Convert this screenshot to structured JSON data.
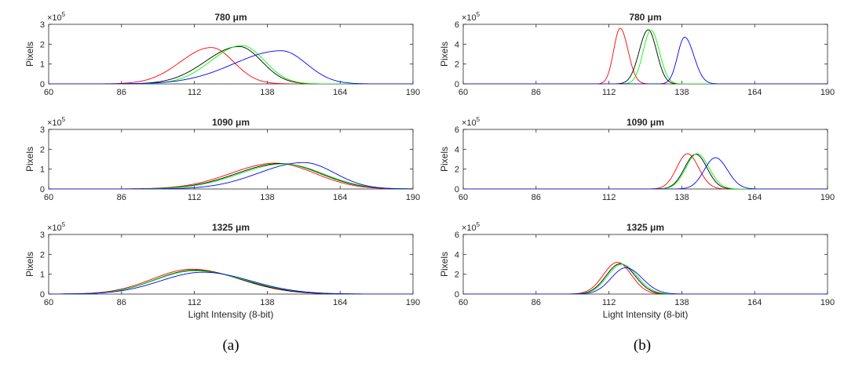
{
  "captions": [
    "(a)",
    "(b)"
  ],
  "chart_data": [
    {
      "type": "line",
      "title": "780 μm",
      "ylabel": "Pixels",
      "xlabel": "",
      "y_exponent": "×10^5",
      "xlim": [
        60,
        190
      ],
      "ylim": [
        0,
        300000
      ],
      "xticks": [
        60,
        86,
        112,
        138,
        164,
        190
      ],
      "yticks": [
        0,
        100000,
        200000,
        300000
      ],
      "ytick_labels": [
        "0",
        "1",
        "2",
        "3"
      ],
      "series": [
        {
          "color": "#ff0000",
          "peak_x": 118,
          "peak_y": 183000,
          "sd_left": 11,
          "sd_right": 8
        },
        {
          "color": "#000000",
          "peak_x": 128,
          "peak_y": 188000,
          "sd_left": 12,
          "sd_right": 8
        },
        {
          "color": "#00ff00",
          "peak_x": 129,
          "peak_y": 193000,
          "sd_left": 11,
          "sd_right": 8
        },
        {
          "color": "#0000ff",
          "peak_x": 143,
          "peak_y": 167000,
          "sd_left": 17,
          "sd_right": 9
        }
      ]
    },
    {
      "type": "line",
      "title": "780 μm",
      "ylabel": "Pixels",
      "xlabel": "",
      "y_exponent": "×10^5",
      "xlim": [
        60,
        190
      ],
      "ylim": [
        0,
        600000
      ],
      "xticks": [
        60,
        86,
        112,
        138,
        164,
        190
      ],
      "yticks": [
        0,
        200000,
        400000,
        600000
      ],
      "ytick_labels": [
        "0",
        "2",
        "4",
        "6"
      ],
      "series": [
        {
          "color": "#ff0000",
          "peak_x": 116,
          "peak_y": 560000,
          "sd_left": 2.3,
          "sd_right": 2.8
        },
        {
          "color": "#000000",
          "peak_x": 126,
          "peak_y": 545000,
          "sd_left": 3.2,
          "sd_right": 3.0
        },
        {
          "color": "#00ff00",
          "peak_x": 127,
          "peak_y": 540000,
          "sd_left": 2.8,
          "sd_right": 3.0
        },
        {
          "color": "#0000ff",
          "peak_x": 139,
          "peak_y": 470000,
          "sd_left": 2.5,
          "sd_right": 3.3
        }
      ]
    },
    {
      "type": "line",
      "title": "1090 μm",
      "ylabel": "Pixels",
      "xlabel": "",
      "y_exponent": "×10^5",
      "xlim": [
        60,
        190
      ],
      "ylim": [
        0,
        300000
      ],
      "xticks": [
        60,
        86,
        112,
        138,
        164,
        190
      ],
      "yticks": [
        0,
        100000,
        200000,
        300000
      ],
      "ytick_labels": [
        "0",
        "1",
        "2",
        "3"
      ],
      "series": [
        {
          "color": "#ff0000",
          "peak_x": 141,
          "peak_y": 130000,
          "sd_left": 16,
          "sd_right": 14
        },
        {
          "color": "#000000",
          "peak_x": 143,
          "peak_y": 128000,
          "sd_left": 16,
          "sd_right": 14
        },
        {
          "color": "#00ff00",
          "peak_x": 144,
          "peak_y": 126000,
          "sd_left": 16,
          "sd_right": 14
        },
        {
          "color": "#0000ff",
          "peak_x": 151,
          "peak_y": 133000,
          "sd_left": 16,
          "sd_right": 11
        }
      ]
    },
    {
      "type": "line",
      "title": "1090 μm",
      "ylabel": "Pixels",
      "xlabel": "",
      "y_exponent": "×10^5",
      "xlim": [
        60,
        190
      ],
      "ylim": [
        0,
        600000
      ],
      "xticks": [
        60,
        86,
        112,
        138,
        164,
        190
      ],
      "yticks": [
        0,
        200000,
        400000,
        600000
      ],
      "ytick_labels": [
        "0",
        "2",
        "4",
        "6"
      ],
      "series": [
        {
          "color": "#ff0000",
          "peak_x": 140,
          "peak_y": 355000,
          "sd_left": 3.8,
          "sd_right": 4.0
        },
        {
          "color": "#000000",
          "peak_x": 143,
          "peak_y": 350000,
          "sd_left": 4.0,
          "sd_right": 4.0
        },
        {
          "color": "#00ff00",
          "peak_x": 143.5,
          "peak_y": 355000,
          "sd_left": 4.0,
          "sd_right": 4.2
        },
        {
          "color": "#0000ff",
          "peak_x": 150,
          "peak_y": 315000,
          "sd_left": 4.0,
          "sd_right": 4.3
        }
      ]
    },
    {
      "type": "line",
      "title": "1325 μm",
      "ylabel": "Pixels",
      "xlabel": "Light Intensity (8-bit)",
      "y_exponent": "×10^5",
      "xlim": [
        60,
        190
      ],
      "ylim": [
        0,
        300000
      ],
      "xticks": [
        60,
        86,
        112,
        138,
        164,
        190
      ],
      "yticks": [
        0,
        100000,
        200000,
        300000
      ],
      "ytick_labels": [
        "0",
        "1",
        "2",
        "3"
      ],
      "series": [
        {
          "color": "#ff0000",
          "peak_x": 111,
          "peak_y": 125000,
          "sd_left": 14,
          "sd_right": 17
        },
        {
          "color": "#000000",
          "peak_x": 112,
          "peak_y": 120000,
          "sd_left": 14,
          "sd_right": 17
        },
        {
          "color": "#00ff00",
          "peak_x": 112,
          "peak_y": 117000,
          "sd_left": 14,
          "sd_right": 18
        },
        {
          "color": "#0000ff",
          "peak_x": 115,
          "peak_y": 110000,
          "sd_left": 15,
          "sd_right": 17
        }
      ]
    },
    {
      "type": "line",
      "title": "1325 μm",
      "ylabel": "Pixels",
      "xlabel": "Light Intensity (8-bit)",
      "y_exponent": "×10^5",
      "xlim": [
        60,
        190
      ],
      "ylim": [
        0,
        600000
      ],
      "xticks": [
        60,
        86,
        112,
        138,
        164,
        190
      ],
      "yticks": [
        0,
        200000,
        400000,
        600000
      ],
      "ytick_labels": [
        "0",
        "2",
        "4",
        "6"
      ],
      "series": [
        {
          "color": "#ff0000",
          "peak_x": 115,
          "peak_y": 320000,
          "sd_left": 5.0,
          "sd_right": 5.0
        },
        {
          "color": "#000000",
          "peak_x": 116,
          "peak_y": 305000,
          "sd_left": 5.0,
          "sd_right": 5.3
        },
        {
          "color": "#00ff00",
          "peak_x": 116.5,
          "peak_y": 300000,
          "sd_left": 5.0,
          "sd_right": 5.5
        },
        {
          "color": "#0000ff",
          "peak_x": 118,
          "peak_y": 265000,
          "sd_left": 5.2,
          "sd_right": 5.8
        }
      ]
    }
  ]
}
